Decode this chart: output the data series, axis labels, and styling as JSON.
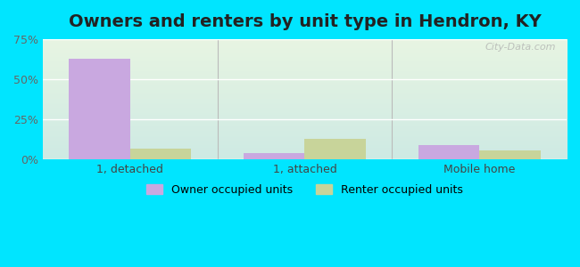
{
  "title": "Owners and renters by unit type in Hendron, KY",
  "categories": [
    "1, detached",
    "1, attached",
    "Mobile home"
  ],
  "owner_values": [
    63,
    4,
    9
  ],
  "renter_values": [
    7,
    13,
    6
  ],
  "owner_color": "#c9a8e0",
  "renter_color": "#c8d49a",
  "ylim": [
    0,
    75
  ],
  "yticks": [
    0,
    25,
    50,
    75
  ],
  "ytick_labels": [
    "0%",
    "25%",
    "50%",
    "75%"
  ],
  "bar_width": 0.35,
  "background_outer": "#00e5ff",
  "bg_color_top": "#e8f5e2",
  "bg_color_bottom": "#ceeae4",
  "watermark": "City-Data.com",
  "legend_owner": "Owner occupied units",
  "legend_renter": "Renter occupied units",
  "title_fontsize": 14,
  "tick_fontsize": 9,
  "legend_fontsize": 9
}
